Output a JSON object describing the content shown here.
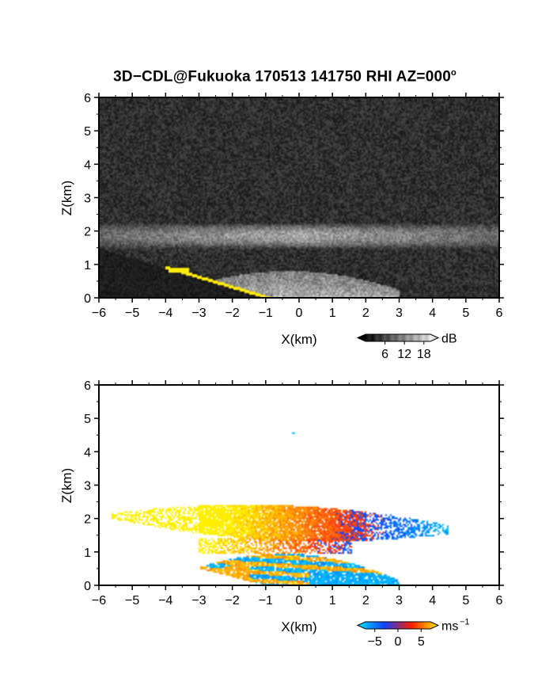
{
  "title": "3D−CDL@Fukuoka 170513 141750 RHI AZ=000º",
  "title_text": "3D−CDL@Fukuoka 170513 141750 RHI AZ=000",
  "title_degree": "o",
  "chart_data": [
    {
      "type": "heatmap",
      "name": "backscatter",
      "xlabel": "X(km)",
      "ylabel": "Z(km)",
      "xlim": [
        -6,
        6
      ],
      "ylim": [
        0,
        6
      ],
      "xticks": [
        "−6",
        "−5",
        "−4",
        "−3",
        "−2",
        "−1",
        "0",
        "1",
        "2",
        "3",
        "4",
        "5",
        "6"
      ],
      "yticks": [
        "0",
        "1",
        "2",
        "3",
        "4",
        "5",
        "6"
      ],
      "background": "noise",
      "layers": [
        {
          "feature": "elevated aerosol layer",
          "x": [
            -6,
            6
          ],
          "z_center": 1.85,
          "z_thickness": 0.6,
          "level_db": 8
        },
        {
          "feature": "boundary layer",
          "x": [
            -4,
            3
          ],
          "z_top": 0.8,
          "level_db": 14
        },
        {
          "feature": "ground clutter",
          "x": [
            -4,
            -1
          ],
          "color": "#ffee00"
        }
      ],
      "colorbar": {
        "unit": "dB",
        "ticks": [
          "6",
          "12",
          "18"
        ],
        "range": [
          0,
          20
        ],
        "colors": [
          "#000000",
          "#ffffff",
          "#ffee00"
        ]
      }
    },
    {
      "type": "heatmap",
      "name": "doppler velocity",
      "xlabel": "X(km)",
      "ylabel": "Z(km)",
      "xlim": [
        -6,
        6
      ],
      "ylim": [
        0,
        6
      ],
      "xticks": [
        "−6",
        "−5",
        "−4",
        "−3",
        "−2",
        "−1",
        "0",
        "1",
        "2",
        "3",
        "4",
        "5",
        "6"
      ],
      "yticks": [
        "0",
        "1",
        "2",
        "3",
        "4",
        "5",
        "6"
      ],
      "layers": [
        {
          "feature": "elevated layer",
          "x": [
            -5.5,
            4.5
          ],
          "z_range": [
            1.0,
            2.5
          ],
          "velocity_left": 4,
          "velocity_right": -4
        },
        {
          "feature": "lower layer",
          "x": [
            -4,
            3
          ],
          "z_range": [
            0.0,
            0.9
          ],
          "velocity_mix": true
        },
        {
          "feature": "isolated pixel",
          "x": [
            -0.2,
            -0.1
          ],
          "z": 4.6,
          "velocity": -4
        }
      ],
      "colorbar": {
        "unit": "ms",
        "unit_exponent": "−1",
        "ticks": [
          "−5",
          "0",
          "5"
        ],
        "range": [
          -7,
          7
        ],
        "colors": [
          "#00e5ff",
          "#1040ff",
          "#ff1a00",
          "#ffee00"
        ]
      }
    }
  ]
}
